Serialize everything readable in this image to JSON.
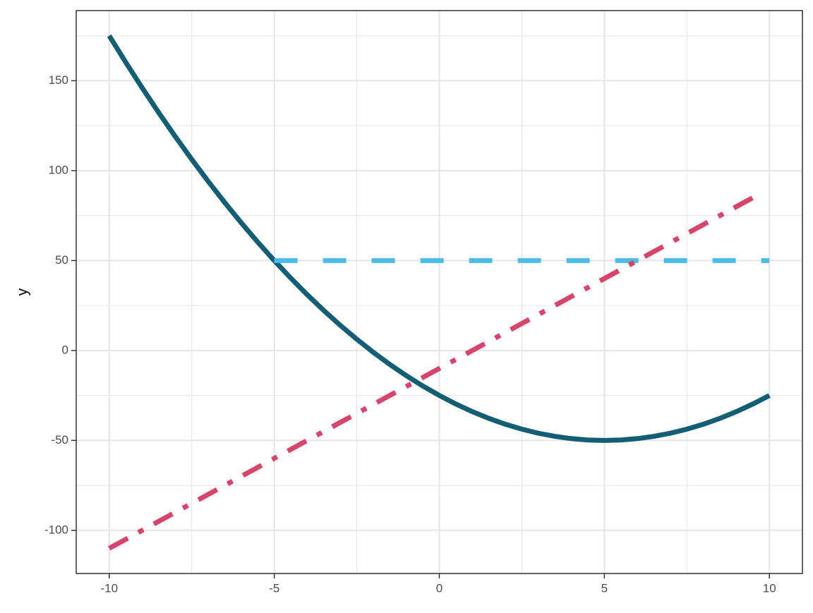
{
  "chart_data": {
    "type": "line",
    "y_label": "y",
    "xlim": [
      -11,
      11
    ],
    "xticks": [
      -10,
      -5,
      0,
      5,
      10
    ],
    "x_minor_ticks": [
      -7.5,
      -2.5,
      2.5,
      7.5
    ],
    "ylim": [
      -124,
      189
    ],
    "yticks": [
      -100,
      -50,
      0,
      50,
      100,
      150
    ],
    "y_minor_ticks": [
      -75,
      -25,
      25,
      75,
      125,
      175
    ],
    "grid": true,
    "series": [
      {
        "color": "#135e75",
        "dash": "solid",
        "x": [
          -10,
          -9.5,
          -9,
          -8.5,
          -8,
          -7.5,
          -7,
          -6.5,
          -6,
          -5.5,
          -5,
          -4.5,
          -4,
          -3.5,
          -3,
          -2.5,
          -2,
          -1.5,
          -1,
          -0.5,
          0,
          0.5,
          1,
          1.5,
          2,
          2.5,
          3,
          3.5,
          4,
          4.5,
          5,
          5.5,
          6,
          6.5,
          7,
          7.5,
          8,
          8.5,
          9,
          9.5,
          10
        ],
        "values": [
          175,
          160.25,
          146,
          132.25,
          119,
          106.25,
          94,
          82.25,
          71,
          60.25,
          50,
          40.25,
          31,
          22.25,
          14,
          6.25,
          -1,
          -7.75,
          -14,
          -19.75,
          -25,
          -29.75,
          -34,
          -37.75,
          -41,
          -43.75,
          -46,
          -47.75,
          -49,
          -49.75,
          -50,
          -49.75,
          -49,
          -47.75,
          -46,
          -43.75,
          -41,
          -37.75,
          -34,
          -29.75,
          -25
        ]
      },
      {
        "color": "#4fbbe8",
        "dash": "dashed",
        "x": [
          -5,
          10
        ],
        "values": [
          50,
          50
        ]
      },
      {
        "color": "#d6456b",
        "dash": "dotdash",
        "x": [
          -10,
          9.6
        ],
        "values": [
          -110,
          86
        ]
      }
    ]
  }
}
